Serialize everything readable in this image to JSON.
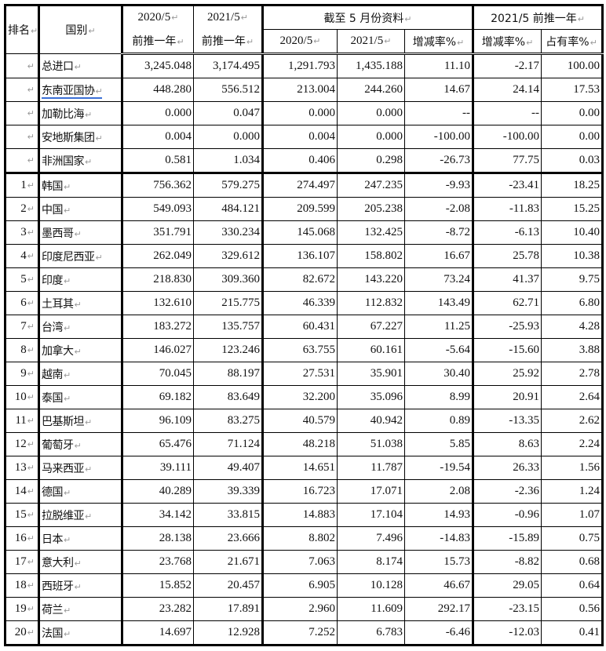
{
  "header": {
    "rank": "排名",
    "country": "国别",
    "col_2020": "2020/5",
    "col_2021": "2021/5",
    "prev_year": "前推一年",
    "ytd_group": "截至 5 月份资料",
    "ytd_2020": "2020/5",
    "ytd_2021": "2021/5",
    "ytd_change": "增减率%",
    "prev_group": "2021/5 前推一年",
    "prev_change": "增减率%",
    "share": "占有率%"
  },
  "summary_rows": [
    {
      "rank": "",
      "name": "总进口",
      "a": "3,245.048",
      "b": "3,174.495",
      "c": "1,291.793",
      "d": "1,435.188",
      "e": "11.10",
      "f": "-2.17",
      "g": "100.00"
    },
    {
      "rank": "",
      "name": "东南亚国协",
      "a": "448.280",
      "b": "556.512",
      "c": "213.004",
      "d": "244.260",
      "e": "14.67",
      "f": "24.14",
      "g": "17.53"
    },
    {
      "rank": "",
      "name": "加勒比海",
      "a": "0.000",
      "b": "0.047",
      "c": "0.000",
      "d": "0.000",
      "e": "--",
      "f": "--",
      "g": "0.00"
    },
    {
      "rank": "",
      "name": "安地斯集团",
      "a": "0.004",
      "b": "0.000",
      "c": "0.004",
      "d": "0.000",
      "e": "-100.00",
      "f": "-100.00",
      "g": "0.00"
    },
    {
      "rank": "",
      "name": "非洲国家",
      "a": "0.581",
      "b": "1.034",
      "c": "0.406",
      "d": "0.298",
      "e": "-26.73",
      "f": "77.75",
      "g": "0.03"
    }
  ],
  "rows": [
    {
      "rank": "1",
      "name": "韩国",
      "a": "756.362",
      "b": "579.275",
      "c": "274.497",
      "d": "247.235",
      "e": "-9.93",
      "f": "-23.41",
      "g": "18.25"
    },
    {
      "rank": "2",
      "name": "中国",
      "a": "549.093",
      "b": "484.121",
      "c": "209.599",
      "d": "205.238",
      "e": "-2.08",
      "f": "-11.83",
      "g": "15.25"
    },
    {
      "rank": "3",
      "name": "墨西哥",
      "a": "351.791",
      "b": "330.234",
      "c": "145.068",
      "d": "132.425",
      "e": "-8.72",
      "f": "-6.13",
      "g": "10.40"
    },
    {
      "rank": "4",
      "name": "印度尼西亚",
      "a": "262.049",
      "b": "329.612",
      "c": "136.107",
      "d": "158.802",
      "e": "16.67",
      "f": "25.78",
      "g": "10.38"
    },
    {
      "rank": "5",
      "name": "印度",
      "a": "218.830",
      "b": "309.360",
      "c": "82.672",
      "d": "143.220",
      "e": "73.24",
      "f": "41.37",
      "g": "9.75"
    },
    {
      "rank": "6",
      "name": "土耳其",
      "a": "132.610",
      "b": "215.775",
      "c": "46.339",
      "d": "112.832",
      "e": "143.49",
      "f": "62.71",
      "g": "6.80"
    },
    {
      "rank": "7",
      "name": "台湾",
      "a": "183.272",
      "b": "135.757",
      "c": "60.431",
      "d": "67.227",
      "e": "11.25",
      "f": "-25.93",
      "g": "4.28"
    },
    {
      "rank": "8",
      "name": "加拿大",
      "a": "146.027",
      "b": "123.246",
      "c": "63.755",
      "d": "60.161",
      "e": "-5.64",
      "f": "-15.60",
      "g": "3.88"
    },
    {
      "rank": "9",
      "name": "越南",
      "a": "70.045",
      "b": "88.197",
      "c": "27.531",
      "d": "35.901",
      "e": "30.40",
      "f": "25.92",
      "g": "2.78"
    },
    {
      "rank": "10",
      "name": "泰国",
      "a": "69.182",
      "b": "83.649",
      "c": "32.200",
      "d": "35.096",
      "e": "8.99",
      "f": "20.91",
      "g": "2.64"
    },
    {
      "rank": "11",
      "name": "巴基斯坦",
      "a": "96.109",
      "b": "83.275",
      "c": "40.579",
      "d": "40.942",
      "e": "0.89",
      "f": "-13.35",
      "g": "2.62"
    },
    {
      "rank": "12",
      "name": "葡萄牙",
      "a": "65.476",
      "b": "71.124",
      "c": "48.218",
      "d": "51.038",
      "e": "5.85",
      "f": "8.63",
      "g": "2.24"
    },
    {
      "rank": "13",
      "name": "马来西亚",
      "a": "39.111",
      "b": "49.407",
      "c": "14.651",
      "d": "11.787",
      "e": "-19.54",
      "f": "26.33",
      "g": "1.56"
    },
    {
      "rank": "14",
      "name": "德国",
      "a": "40.289",
      "b": "39.339",
      "c": "16.723",
      "d": "17.071",
      "e": "2.08",
      "f": "-2.36",
      "g": "1.24"
    },
    {
      "rank": "15",
      "name": "拉脱维亚",
      "a": "34.142",
      "b": "33.815",
      "c": "14.883",
      "d": "17.104",
      "e": "14.93",
      "f": "-0.96",
      "g": "1.07"
    },
    {
      "rank": "16",
      "name": "日本",
      "a": "28.138",
      "b": "23.666",
      "c": "8.802",
      "d": "7.496",
      "e": "-14.83",
      "f": "-15.89",
      "g": "0.75"
    },
    {
      "rank": "17",
      "name": "意大利",
      "a": "23.768",
      "b": "21.671",
      "c": "7.063",
      "d": "8.174",
      "e": "15.73",
      "f": "-8.82",
      "g": "0.68"
    },
    {
      "rank": "18",
      "name": "西班牙",
      "a": "15.852",
      "b": "20.457",
      "c": "6.905",
      "d": "10.128",
      "e": "46.67",
      "f": "29.05",
      "g": "0.64"
    },
    {
      "rank": "19",
      "name": "荷兰",
      "a": "23.282",
      "b": "17.891",
      "c": "2.960",
      "d": "11.609",
      "e": "292.17",
      "f": "-23.15",
      "g": "0.56"
    },
    {
      "rank": "20",
      "name": "法国",
      "a": "14.697",
      "b": "12.928",
      "c": "7.252",
      "d": "6.783",
      "e": "-6.46",
      "f": "-12.03",
      "g": "0.41"
    }
  ]
}
